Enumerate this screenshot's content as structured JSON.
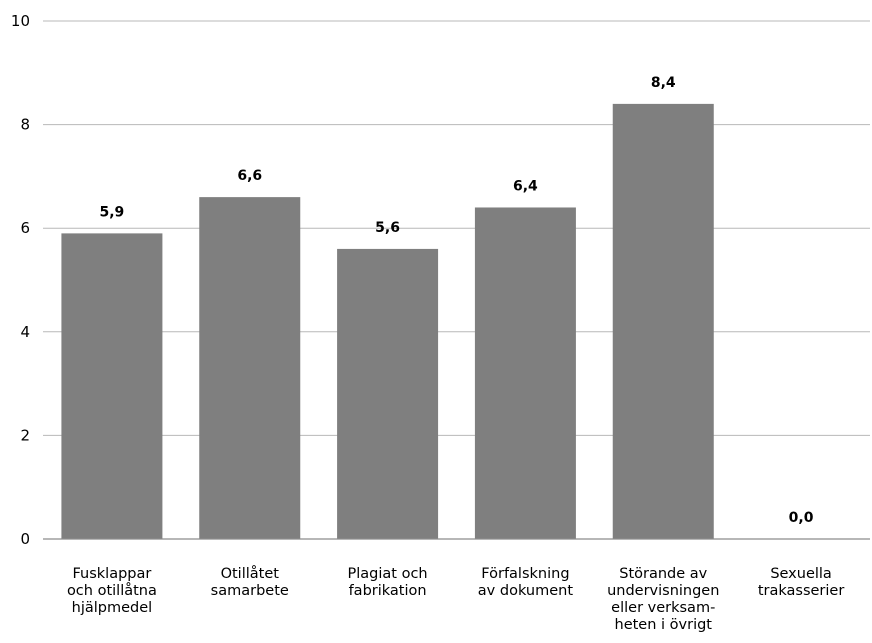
{
  "chart_data": {
    "type": "bar",
    "categories": [
      [
        "Fusklappar",
        "och otillåtna",
        "hjälpmedel"
      ],
      [
        "Otillåtet",
        "samarbete"
      ],
      [
        "Plagiat och",
        "fabrikation"
      ],
      [
        "Förfalskning",
        "av dokument"
      ],
      [
        "Störande av",
        "undervisningen",
        "eller verksam-",
        "heten i övrigt"
      ],
      [
        "Sexuella",
        "trakasserier"
      ]
    ],
    "values": [
      5.9,
      6.6,
      5.6,
      6.4,
      8.4,
      0.0
    ],
    "data_labels": [
      "5,9",
      "6,6",
      "5,6",
      "6,4",
      "8,4",
      "0,0"
    ],
    "ylim": [
      0,
      10
    ],
    "yticks": [
      0,
      2,
      4,
      6,
      8,
      10
    ],
    "grid": true,
    "colors": {
      "bar": "#7f7f7f"
    }
  }
}
